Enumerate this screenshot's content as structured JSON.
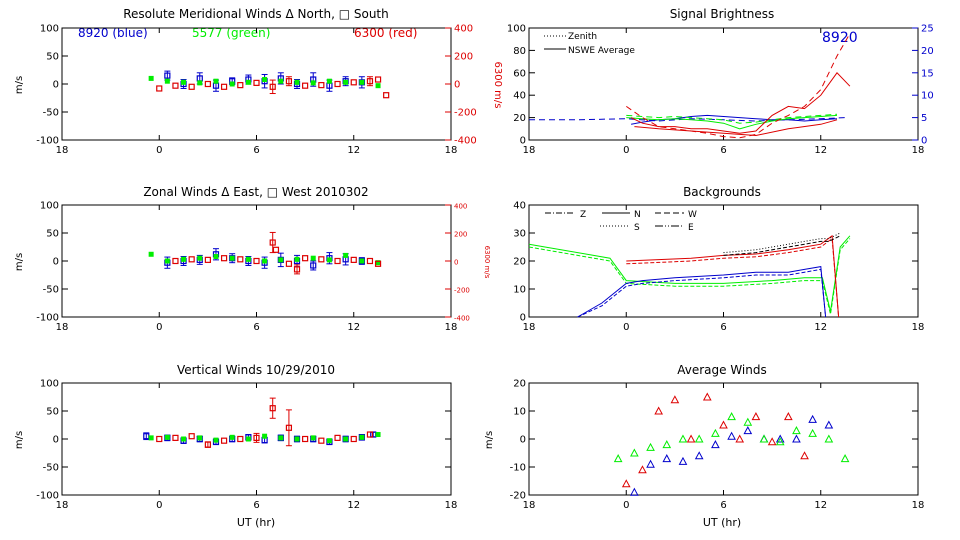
{
  "page": {
    "bg": "#ffffff",
    "axis_color": "#000000"
  },
  "colors": {
    "blue": "#0000cc",
    "green": "#00ee00",
    "red": "#dd0000",
    "black": "#000000"
  },
  "panels": {
    "merid": {
      "title": "Resolute Meridional Winds Δ North, □ South",
      "ylabel": "m/s",
      "y2label": "6300 m/s",
      "yticks": [
        "100",
        "50",
        "0",
        "-50",
        "-100"
      ],
      "y2ticks": [
        "400",
        "200",
        "0",
        "-200",
        "-400"
      ],
      "xticks": [
        "18",
        "0",
        "6",
        "12",
        "18"
      ],
      "legend": [
        "8920 (blue)",
        "5577 (green)",
        "6300 (red)"
      ]
    },
    "zonal": {
      "title": "Zonal Winds Δ East, □ West 2010302",
      "ylabel": "m/s",
      "y2label": "6300 m/s",
      "yticks": [
        "100",
        "50",
        "0",
        "-50",
        "-100"
      ],
      "y2ticks": [
        "400",
        "200",
        "0",
        "-200",
        "-400"
      ],
      "xticks": [
        "18",
        "0",
        "6",
        "12",
        "18"
      ]
    },
    "vert": {
      "title": "Vertical Winds 10/29/2010",
      "ylabel": "m/s",
      "xlabel": "UT (hr)",
      "yticks": [
        "100",
        "50",
        "0",
        "-50",
        "-100"
      ],
      "xticks": [
        "18",
        "0",
        "6",
        "12",
        "18"
      ]
    },
    "signal": {
      "title": "Signal Brightness",
      "yticks": [
        "100",
        "80",
        "60",
        "40",
        "20",
        "0"
      ],
      "y2ticks": [
        "25",
        "20",
        "15",
        "10",
        "5",
        "0"
      ],
      "xticks": [
        "18",
        "0",
        "6",
        "12",
        "18"
      ],
      "legend": [
        "Zenith",
        "NSWE Average"
      ],
      "annotation": "8920"
    },
    "bkg": {
      "title": "Backgrounds",
      "yticks": [
        "40",
        "30",
        "20",
        "10",
        "0"
      ],
      "xticks": [
        "18",
        "0",
        "6",
        "12",
        "18"
      ],
      "legend": [
        "Z",
        "N",
        "W",
        "S",
        "E"
      ]
    },
    "avg": {
      "title": "Average Winds",
      "ylabel": "m/s",
      "xlabel": "UT (hr)",
      "yticks": [
        "20",
        "10",
        "0",
        "-10",
        "-20"
      ],
      "xticks": [
        "18",
        "0",
        "6",
        "12",
        "18"
      ]
    }
  },
  "chart_data": [
    {
      "name": "merid",
      "type": "scatter",
      "title": "Resolute Meridional Winds Δ North, □ South",
      "ylabel": "m/s",
      "y2label": "6300 m/s",
      "xlim": [
        -6,
        18
      ],
      "ylim": [
        -100,
        100
      ],
      "y2lim": [
        -400,
        400
      ],
      "xtick_labels": [
        "18",
        "0",
        "6",
        "12",
        "18"
      ],
      "series": [
        {
          "name": "8920 (blue)",
          "color": "blue",
          "x": [
            0.5,
            1.5,
            2.5,
            3.5,
            4.5,
            5.5,
            6.5,
            7.5,
            8.5,
            9.5,
            10.5,
            11.5,
            12.5
          ],
          "y": [
            15,
            0,
            10,
            -3,
            5,
            8,
            5,
            10,
            0,
            8,
            -3,
            5,
            3
          ],
          "err": [
            8,
            8,
            10,
            10,
            6,
            8,
            12,
            10,
            8,
            12,
            10,
            8,
            10
          ]
        },
        {
          "name": "5577 (green)",
          "color": "green",
          "x": [
            -0.5,
            0.5,
            1.5,
            2.5,
            3.5,
            4.5,
            5.5,
            6.5,
            7.5,
            8.5,
            9.5,
            10.5,
            11.5,
            12.5,
            13.5
          ],
          "y": [
            10,
            5,
            3,
            2,
            5,
            0,
            3,
            8,
            5,
            3,
            2,
            5,
            3,
            3,
            -3
          ]
        },
        {
          "name": "6300 (red)",
          "color": "red",
          "x": [
            0,
            1,
            2,
            3,
            4,
            5,
            6,
            7,
            8,
            9,
            10,
            11,
            12,
            13,
            13.5,
            14
          ],
          "y": [
            -8,
            -3,
            -5,
            0,
            -5,
            -2,
            2,
            -5,
            5,
            -3,
            -2,
            0,
            3,
            5,
            8,
            -20
          ],
          "err": [
            0,
            0,
            0,
            0,
            0,
            0,
            0,
            12,
            8,
            0,
            0,
            0,
            0,
            8,
            0,
            0
          ]
        }
      ]
    },
    {
      "name": "zonal",
      "type": "scatter",
      "title": "Zonal Winds Δ East, □ West 2010302",
      "ylabel": "m/s",
      "y2label": "6300 m/s",
      "xlim": [
        -6,
        18
      ],
      "ylim": [
        -100,
        100
      ],
      "y2lim": [
        -400,
        400
      ],
      "xtick_labels": [
        "18",
        "0",
        "6",
        "12",
        "18"
      ],
      "series": [
        {
          "name": "8920 (blue)",
          "color": "blue",
          "x": [
            0.5,
            1.5,
            2.5,
            3.5,
            4.5,
            5.5,
            6.5,
            7.5,
            8.5,
            9.5,
            10.5,
            11.5,
            12.5
          ],
          "y": [
            -3,
            0,
            2,
            12,
            5,
            0,
            -3,
            2,
            0,
            -8,
            5,
            3,
            0
          ],
          "err": [
            10,
            8,
            8,
            10,
            8,
            8,
            10,
            12,
            10,
            8,
            10,
            10,
            6
          ]
        },
        {
          "name": "5577 (green)",
          "color": "green",
          "x": [
            -0.5,
            0.5,
            1.5,
            2.5,
            3.5,
            4.5,
            5.5,
            6.5,
            7.5,
            8.5,
            9.5,
            10.5,
            11.5,
            12.5,
            13.5
          ],
          "y": [
            12,
            0,
            3,
            5,
            8,
            5,
            3,
            0,
            2,
            3,
            5,
            2,
            10,
            0,
            -3
          ]
        },
        {
          "name": "6300 (red)",
          "color": "red",
          "x": [
            1,
            2,
            3,
            4,
            5,
            6,
            7,
            7.2,
            8,
            8.5,
            9,
            10,
            11,
            12,
            13,
            13.5
          ],
          "y": [
            0,
            3,
            2,
            5,
            3,
            0,
            33,
            20,
            -5,
            -15,
            5,
            3,
            0,
            2,
            0,
            -5
          ],
          "err": [
            0,
            0,
            0,
            0,
            0,
            0,
            18,
            0,
            0,
            8,
            0,
            0,
            0,
            0,
            0,
            0
          ]
        }
      ]
    },
    {
      "name": "vert",
      "type": "scatter",
      "title": "Vertical Winds 10/29/2010",
      "xlabel": "UT (hr)",
      "ylabel": "m/s",
      "xlim": [
        -6,
        18
      ],
      "ylim": [
        -100,
        100
      ],
      "xtick_labels": [
        "18",
        "0",
        "6",
        "12",
        "18"
      ],
      "series": [
        {
          "name": "8920 (blue)",
          "color": "blue",
          "x": [
            -0.8,
            0.5,
            1.5,
            2.5,
            3.5,
            4.5,
            5.5,
            6.5,
            7.5,
            8.5,
            9.5,
            10.5,
            11.5,
            12.5,
            13.2
          ],
          "y": [
            5,
            2,
            -3,
            0,
            -5,
            0,
            3,
            -2,
            2,
            0,
            0,
            -5,
            0,
            3,
            8
          ],
          "err": [
            6,
            5,
            5,
            5,
            5,
            5,
            5,
            5,
            5,
            5,
            5,
            5,
            5,
            5,
            4
          ]
        },
        {
          "name": "5577 (green)",
          "color": "green",
          "x": [
            -0.5,
            0.5,
            1.5,
            2.5,
            3.5,
            4.5,
            5.5,
            6.5,
            7.5,
            8.5,
            9.5,
            10.5,
            11.5,
            12.5,
            13.5
          ],
          "y": [
            2,
            3,
            0,
            2,
            -2,
            3,
            0,
            5,
            2,
            0,
            2,
            -3,
            0,
            3,
            8
          ]
        },
        {
          "name": "6300 (red)",
          "color": "red",
          "x": [
            0,
            1,
            2,
            3,
            4,
            5,
            6,
            7,
            8,
            9,
            10,
            11,
            12,
            13
          ],
          "y": [
            0,
            2,
            5,
            -10,
            -3,
            0,
            2,
            55,
            20,
            0,
            -3,
            2,
            0,
            8
          ],
          "err": [
            0,
            0,
            0,
            5,
            0,
            0,
            8,
            18,
            32,
            0,
            0,
            0,
            0,
            0
          ]
        }
      ]
    },
    {
      "name": "signal",
      "type": "line",
      "title": "Signal Brightness",
      "xlim": [
        -6,
        18
      ],
      "ylim": [
        0,
        100
      ],
      "y2lim": [
        0,
        25
      ],
      "xtick_labels": [
        "18",
        "0",
        "6",
        "12",
        "18"
      ],
      "legend": [
        "Zenith",
        "NSWE Average"
      ],
      "annotation": "8920",
      "series": [
        {
          "name": "blue zenith",
          "color": "blue",
          "style": "dash",
          "x": [
            -6,
            -3,
            0,
            2,
            4,
            6,
            8,
            10,
            12,
            13.5
          ],
          "y": [
            18,
            18,
            19,
            17,
            19,
            18,
            17,
            18,
            19,
            20
          ]
        },
        {
          "name": "blue avg",
          "color": "blue",
          "style": "solid",
          "x": [
            0.3,
            1,
            2,
            3,
            4,
            5,
            6,
            7,
            8,
            9,
            10,
            11,
            12,
            13
          ],
          "y": [
            14,
            16,
            18,
            19,
            21,
            22,
            21,
            20,
            19,
            18,
            18,
            17,
            18,
            19
          ]
        },
        {
          "name": "green zenith",
          "color": "green",
          "style": "dash",
          "x": [
            0,
            1,
            2,
            3,
            4,
            5,
            6,
            7,
            8,
            9,
            10,
            11,
            12,
            13
          ],
          "y": [
            22,
            21,
            20,
            21,
            20,
            19,
            18,
            15,
            16,
            18,
            20,
            21,
            22,
            23
          ]
        },
        {
          "name": "green avg",
          "color": "green",
          "style": "solid",
          "x": [
            0,
            1,
            2,
            3,
            4,
            5,
            6,
            7,
            8,
            9,
            10,
            11,
            12,
            13
          ],
          "y": [
            20,
            19,
            18,
            19,
            18,
            17,
            15,
            10,
            14,
            17,
            19,
            20,
            21,
            22
          ]
        },
        {
          "name": "red zenith",
          "color": "red",
          "style": "dash",
          "x": [
            0,
            1,
            2,
            3,
            4,
            5,
            6,
            7,
            8,
            9,
            10,
            11,
            12,
            13,
            13.8
          ],
          "y": [
            30,
            20,
            12,
            10,
            8,
            6,
            3,
            2,
            5,
            15,
            22,
            30,
            45,
            75,
            95
          ]
        },
        {
          "name": "red avg",
          "color": "red",
          "style": "solid",
          "x": [
            0.3,
            1,
            2,
            3,
            4,
            5,
            6,
            7,
            8,
            9,
            10,
            11,
            12,
            13,
            13.8
          ],
          "y": [
            20,
            15,
            12,
            12,
            10,
            10,
            8,
            6,
            8,
            22,
            30,
            28,
            40,
            60,
            48
          ]
        },
        {
          "name": "red secondary",
          "color": "red",
          "style": "solid",
          "x": [
            0.5,
            2,
            4,
            6,
            8,
            10,
            12,
            13
          ],
          "y": [
            12,
            10,
            8,
            6,
            4,
            10,
            14,
            18
          ]
        }
      ]
    },
    {
      "name": "bkg",
      "type": "line",
      "title": "Backgrounds",
      "xlim": [
        -6,
        18
      ],
      "ylim": [
        0,
        40
      ],
      "xtick_labels": [
        "18",
        "0",
        "6",
        "12",
        "18"
      ],
      "legend": [
        "Z",
        "N",
        "W",
        "S",
        "E"
      ],
      "series": [
        {
          "name": "green",
          "color": "green",
          "x": [
            -6,
            -1,
            0,
            3,
            6,
            9,
            11,
            12.1,
            12.6,
            13.2,
            13.8
          ],
          "y": [
            26,
            21,
            13,
            12,
            12,
            13,
            14,
            14,
            2,
            25,
            29
          ]
        },
        {
          "name": "blue",
          "color": "blue",
          "x": [
            -3,
            -1.5,
            0,
            1,
            3,
            6,
            8,
            10,
            11,
            12,
            12.3
          ],
          "y": [
            0,
            5,
            12,
            13,
            14,
            15,
            16,
            16,
            17,
            18,
            0
          ]
        },
        {
          "name": "red",
          "color": "red",
          "x": [
            0,
            2,
            4,
            6,
            8,
            10,
            11,
            12,
            12.7,
            13.1
          ],
          "y": [
            20,
            20.5,
            21,
            22,
            22.5,
            24,
            25,
            26,
            29,
            0
          ]
        },
        {
          "name": "black zenith",
          "color": "black",
          "x": [
            6,
            8,
            10,
            11,
            12,
            12.5,
            13.2
          ],
          "y": [
            23,
            24,
            26,
            27,
            28,
            28,
            30
          ]
        }
      ]
    },
    {
      "name": "avg",
      "type": "scatter",
      "title": "Average Winds",
      "xlabel": "UT (hr)",
      "ylabel": "m/s",
      "xlim": [
        -6,
        18
      ],
      "ylim": [
        -20,
        20
      ],
      "xtick_labels": [
        "18",
        "0",
        "6",
        "12",
        "18"
      ],
      "series": [
        {
          "name": "blue",
          "color": "blue",
          "x": [
            0.5,
            1.5,
            2.5,
            3.5,
            4.5,
            5.5,
            6.5,
            7.5,
            8.5,
            9.5,
            10.5,
            11.5,
            12.5
          ],
          "y": [
            -19,
            -9,
            -7,
            -8,
            -6,
            -2,
            1,
            3,
            0,
            0,
            0,
            7,
            5
          ]
        },
        {
          "name": "green",
          "color": "green",
          "x": [
            -0.5,
            0.5,
            1.5,
            2.5,
            3.5,
            4.5,
            5.5,
            6.5,
            7.5,
            8.5,
            9.5,
            10.5,
            11.5,
            12.5,
            13.5
          ],
          "y": [
            -7,
            -5,
            -3,
            -2,
            0,
            0,
            2,
            8,
            6,
            0,
            -1,
            3,
            2,
            0,
            -7
          ]
        },
        {
          "name": "red",
          "color": "red",
          "x": [
            0,
            1,
            2,
            3,
            4,
            5,
            6,
            7,
            8,
            9,
            10,
            11
          ],
          "y": [
            -16,
            -11,
            10,
            14,
            0,
            15,
            5,
            0,
            8,
            -1,
            8,
            -6
          ]
        }
      ]
    }
  ]
}
